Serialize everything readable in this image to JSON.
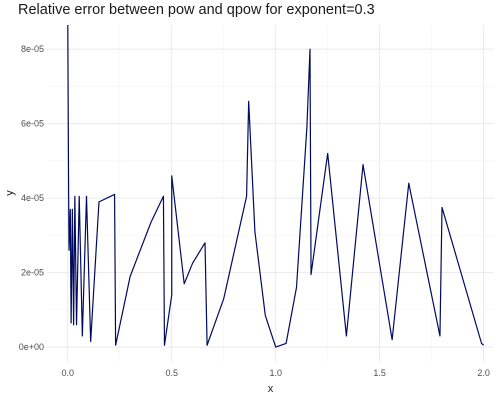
{
  "chart_data": {
    "type": "line",
    "title": "Relative error between pow and qpow for exponent=0.3",
    "xlabel": "x",
    "ylabel": "y",
    "xlim": [
      -0.1,
      2.05
    ],
    "ylim": [
      -4e-06,
      8.65e-05
    ],
    "x_ticks": [
      0,
      0.5,
      1,
      1.5,
      2
    ],
    "x_tick_labels": [
      "0.0",
      "0.5",
      "1.0",
      "1.5",
      "2.0"
    ],
    "y_ticks": [
      0,
      2e-05,
      4e-05,
      6e-05,
      8e-05
    ],
    "y_tick_labels": [
      "0e+00",
      "2e-05",
      "4e-05",
      "6e-05",
      "8e-05"
    ],
    "grid": true,
    "legend": "none",
    "line_color": "#000b5e",
    "series": [
      {
        "values": [
          [
            0.0,
            8.65e-05
          ],
          [
            0.004,
            4.1e-05
          ],
          [
            0.006,
            2.6e-05
          ],
          [
            0.012,
            3.7e-05
          ],
          [
            0.016,
            6.5e-06
          ],
          [
            0.022,
            3.7e-05
          ],
          [
            0.028,
            6e-06
          ],
          [
            0.034,
            4.05e-05
          ],
          [
            0.042,
            6e-06
          ],
          [
            0.055,
            4.05e-05
          ],
          [
            0.07,
            3e-06
          ],
          [
            0.09,
            4.05e-05
          ],
          [
            0.11,
            1.5e-06
          ],
          [
            0.15,
            3.9e-05
          ],
          [
            0.225,
            4.1e-05
          ],
          [
            0.23,
            5e-07
          ],
          [
            0.3,
            1.9e-05
          ],
          [
            0.4,
            3.35e-05
          ],
          [
            0.46,
            4.05e-05
          ],
          [
            0.465,
            5e-07
          ],
          [
            0.5,
            1.4e-05
          ],
          [
            0.5,
            4.6e-05
          ],
          [
            0.56,
            1.7e-05
          ],
          [
            0.6,
            2.25e-05
          ],
          [
            0.66,
            2.8e-05
          ],
          [
            0.67,
            5e-07
          ],
          [
            0.75,
            1.3e-05
          ],
          [
            0.86,
            4.05e-05
          ],
          [
            0.87,
            6.6e-05
          ],
          [
            0.9,
            3.1e-05
          ],
          [
            0.95,
            8.5e-06
          ],
          [
            1.0,
            0.0
          ],
          [
            1.05,
            1e-06
          ],
          [
            1.1,
            1.6e-05
          ],
          [
            1.15,
            5.9e-05
          ],
          [
            1.165,
            8e-05
          ],
          [
            1.17,
            1.95e-05
          ],
          [
            1.25,
            5.2e-05
          ],
          [
            1.34,
            3e-06
          ],
          [
            1.42,
            4.9e-05
          ],
          [
            1.56,
            2e-06
          ],
          [
            1.64,
            4.4e-05
          ],
          [
            1.79,
            3e-06
          ],
          [
            1.8,
            3.75e-05
          ],
          [
            1.99,
            1e-06
          ],
          [
            2.0,
            5e-07
          ]
        ]
      }
    ]
  }
}
